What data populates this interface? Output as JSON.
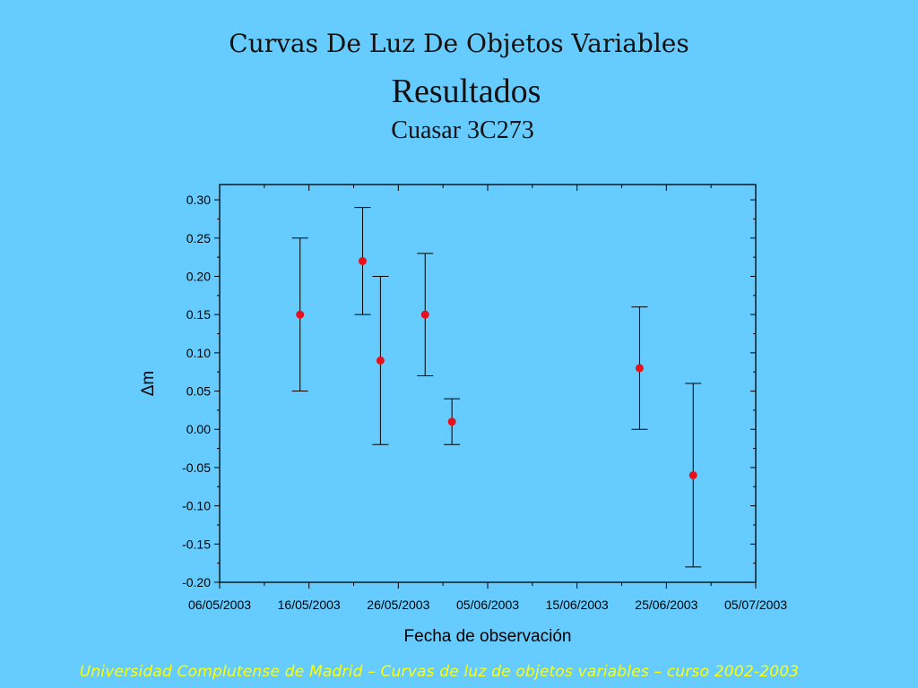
{
  "slide": {
    "title": "Curvas De Luz De Objetos Variables",
    "subtitle": "Resultados",
    "object_name": "Cuasar 3C273",
    "footer": "Universidad Complutense de Madrid – Curvas de luz de objetos variables – curso 2002-2003"
  },
  "colors": {
    "background": "#66ccff",
    "point": "#e8101a",
    "footer_text": "#ffff00"
  },
  "chart_data": {
    "type": "scatter",
    "title": "",
    "xlabel": "Fecha de observación",
    "ylabel": "Δm",
    "xlim": [
      "06/05/2003",
      "05/07/2003"
    ],
    "ylim": [
      -0.2,
      0.32
    ],
    "x_ticks": [
      "06/05/2003",
      "16/05/2003",
      "26/05/2003",
      "05/06/2003",
      "15/06/2003",
      "25/06/2003",
      "05/07/2003"
    ],
    "y_ticks": [
      "-0.20",
      "-0.15",
      "-0.10",
      "-0.05",
      "0.00",
      "0.05",
      "0.10",
      "0.15",
      "0.20",
      "0.25",
      "0.30"
    ],
    "grid": false,
    "error_bars": true,
    "points": [
      {
        "x": "15/05/2003",
        "y": 0.15,
        "yerr_low": 0.05,
        "yerr_high": 0.25
      },
      {
        "x": "22/05/2003",
        "y": 0.22,
        "yerr_low": 0.15,
        "yerr_high": 0.29
      },
      {
        "x": "24/05/2003",
        "y": 0.09,
        "yerr_low": -0.02,
        "yerr_high": 0.2
      },
      {
        "x": "29/05/2003",
        "y": 0.15,
        "yerr_low": 0.07,
        "yerr_high": 0.23
      },
      {
        "x": "01/06/2003",
        "y": 0.01,
        "yerr_low": -0.02,
        "yerr_high": 0.04
      },
      {
        "x": "22/06/2003",
        "y": 0.08,
        "yerr_low": 0.0,
        "yerr_high": 0.16
      },
      {
        "x": "28/06/2003",
        "y": -0.06,
        "yerr_low": -0.18,
        "yerr_high": 0.06
      }
    ]
  }
}
